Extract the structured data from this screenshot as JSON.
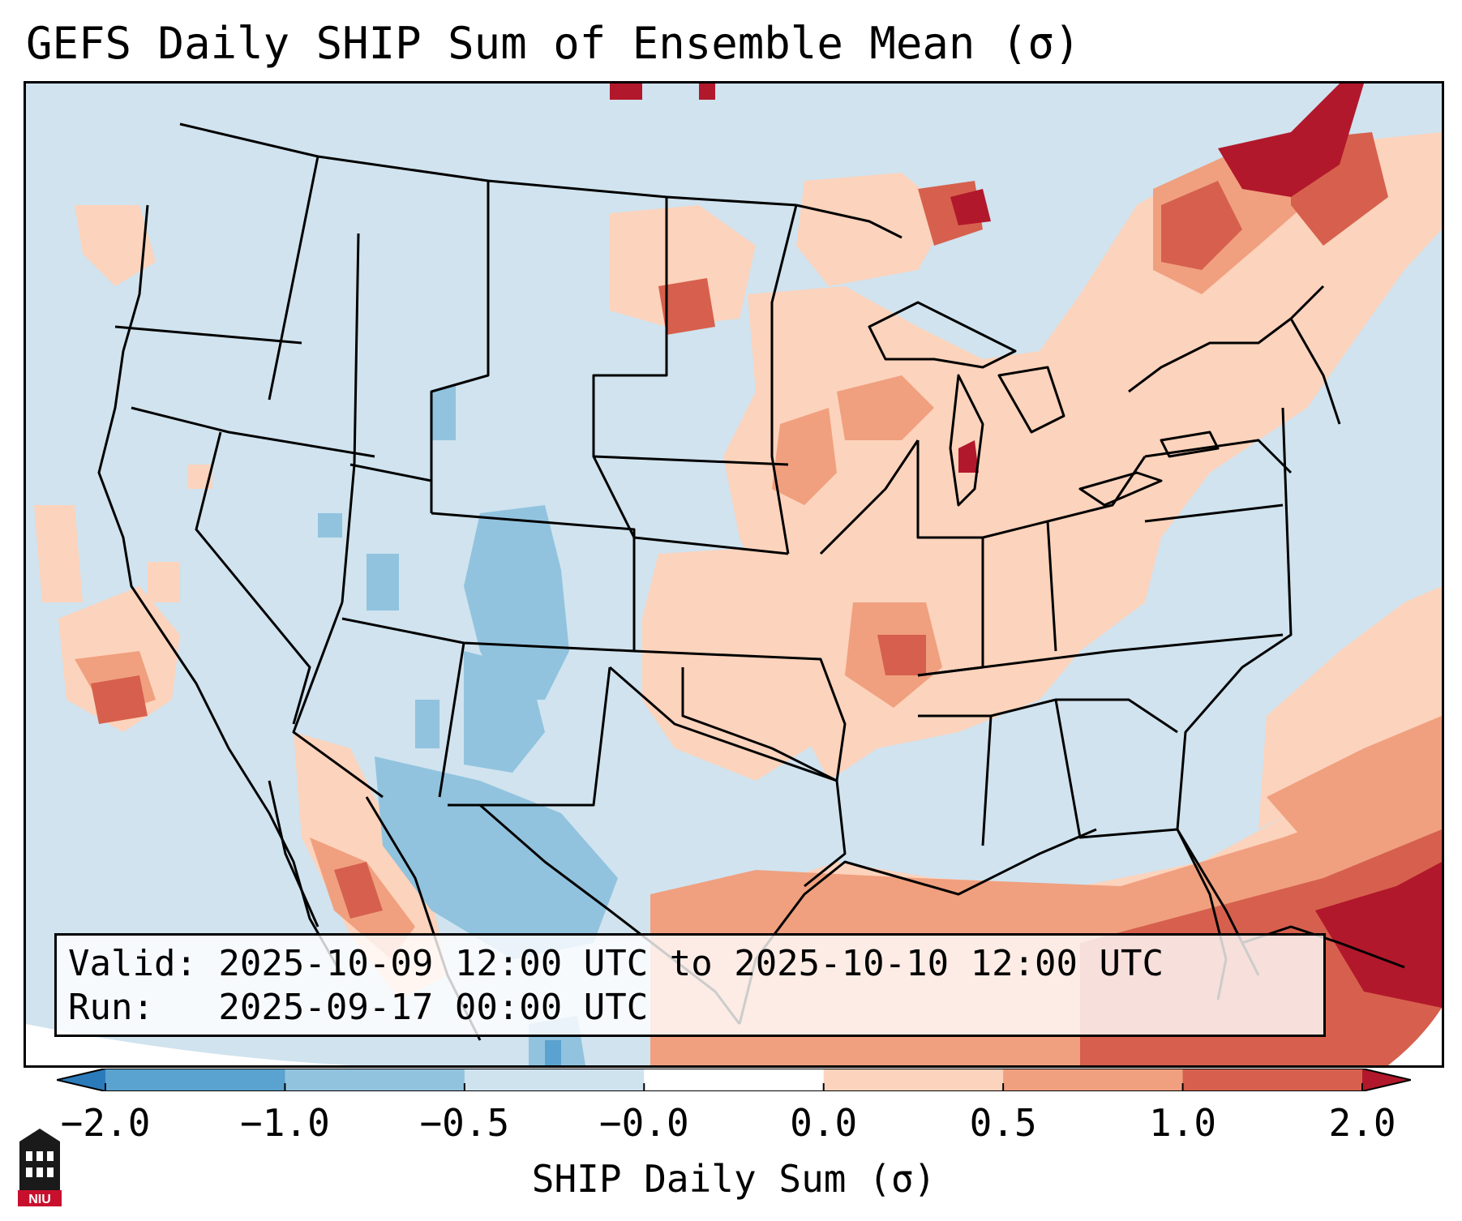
{
  "title": "GEFS Daily SHIP Sum of Ensemble Mean (σ)",
  "info_box": {
    "valid_line": "Valid: 2025-10-09 12:00 UTC to 2025-10-10 12:00 UTC",
    "run_line": "Run:   2025-09-17 00:00 UTC"
  },
  "colorbar": {
    "label": "SHIP Daily Sum (σ)",
    "tick_labels": [
      "−2.0",
      "−1.0",
      "−0.5",
      "−0.0",
      "0.0",
      "0.5",
      "1.0",
      "2.0"
    ],
    "colors": [
      "#2b7bba",
      "#5aa2cf",
      "#91c3de",
      "#cfe3ee",
      "#ffffff",
      "#fcd3bc",
      "#f0a07f",
      "#d6604d",
      "#b2182b"
    ],
    "extend": "both"
  },
  "logo": {
    "text": "NIU"
  },
  "colors": {
    "background_ocean": "#d0e3ef",
    "neg_light": "#91c3de",
    "neg_mid": "#5aa2cf",
    "pos_light": "#fcd3bc",
    "pos_mid": "#f0a07f",
    "pos_strong": "#d6604d",
    "pos_max": "#b2182b"
  }
}
